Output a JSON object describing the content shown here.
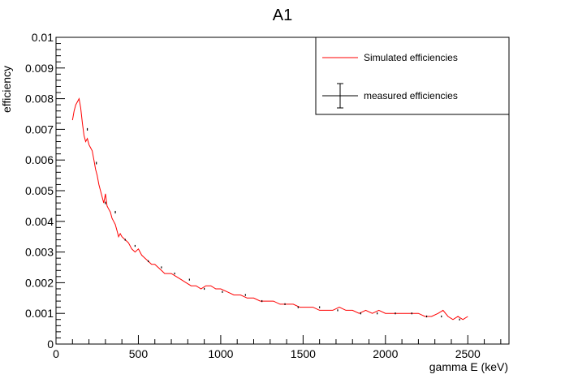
{
  "chart_data": {
    "type": "line",
    "title": "A1",
    "xlabel": "gamma E (keV)",
    "ylabel": "efficiency",
    "xlim": [
      0,
      2750
    ],
    "ylim": [
      0,
      0.01
    ],
    "x_ticks": [
      0,
      500,
      1000,
      1500,
      2000,
      2500
    ],
    "y_ticks": [
      0,
      0.001,
      0.002,
      0.003,
      0.004,
      0.005,
      0.006,
      0.007,
      0.008,
      0.009,
      0.01
    ],
    "x_tick_labels": [
      "0",
      "500",
      "1000",
      "1500",
      "2000",
      "2500"
    ],
    "y_tick_labels": [
      "0",
      "0.001",
      "0.002",
      "0.003",
      "0.004",
      "0.005",
      "0.006",
      "0.007",
      "0.008",
      "0.009",
      "0.01"
    ],
    "grid": false,
    "legend_position": "top-right",
    "colors": {
      "simulated": "#ff0000",
      "measured": "#000000"
    },
    "series": [
      {
        "name": "Simulated efficiencies",
        "style": "line",
        "x": [
          100,
          110,
          120,
          130,
          140,
          150,
          160,
          170,
          180,
          190,
          200,
          210,
          220,
          230,
          240,
          250,
          260,
          270,
          280,
          290,
          300,
          310,
          320,
          330,
          340,
          350,
          360,
          370,
          380,
          390,
          400,
          420,
          440,
          460,
          480,
          500,
          520,
          540,
          560,
          580,
          600,
          620,
          640,
          660,
          680,
          700,
          730,
          760,
          790,
          820,
          850,
          880,
          910,
          940,
          970,
          1000,
          1040,
          1080,
          1120,
          1160,
          1200,
          1240,
          1280,
          1320,
          1360,
          1400,
          1440,
          1480,
          1520,
          1560,
          1600,
          1640,
          1680,
          1720,
          1760,
          1800,
          1840,
          1880,
          1920,
          1960,
          2000,
          2040,
          2080,
          2120,
          2160,
          2200,
          2240,
          2280,
          2320,
          2350,
          2380,
          2410,
          2440,
          2470,
          2500
        ],
        "y": [
          0.0073,
          0.0076,
          0.0078,
          0.0079,
          0.008,
          0.0077,
          0.0072,
          0.0068,
          0.0066,
          0.0067,
          0.0065,
          0.0064,
          0.0063,
          0.006,
          0.0057,
          0.0055,
          0.0052,
          0.005,
          0.0048,
          0.0046,
          0.0049,
          0.0045,
          0.0044,
          0.0043,
          0.0041,
          0.004,
          0.0039,
          0.0037,
          0.0035,
          0.0036,
          0.0035,
          0.0034,
          0.0033,
          0.0031,
          0.003,
          0.0031,
          0.0029,
          0.0028,
          0.0027,
          0.0026,
          0.0026,
          0.0025,
          0.0024,
          0.0023,
          0.0023,
          0.0023,
          0.0022,
          0.0021,
          0.002,
          0.0019,
          0.0019,
          0.0018,
          0.0019,
          0.0019,
          0.0018,
          0.0018,
          0.0017,
          0.0016,
          0.0016,
          0.0015,
          0.0015,
          0.0014,
          0.0014,
          0.0014,
          0.0013,
          0.0013,
          0.0013,
          0.0012,
          0.0012,
          0.0012,
          0.0011,
          0.0011,
          0.0011,
          0.0012,
          0.0011,
          0.0011,
          0.001,
          0.0011,
          0.001,
          0.0011,
          0.001,
          0.001,
          0.001,
          0.001,
          0.001,
          0.001,
          0.0009,
          0.0009,
          0.001,
          0.0011,
          0.0009,
          0.0008,
          0.0009,
          0.0008,
          0.0009
        ]
      },
      {
        "name": "measured efficiencies",
        "style": "errorbar",
        "x": [
          190,
          245,
          300,
          360,
          420,
          480,
          560,
          640,
          720,
          810,
          900,
          1010,
          1150,
          1250,
          1390,
          1470,
          1600,
          1710,
          1850,
          1950,
          2060,
          2160,
          2250,
          2340,
          2450
        ],
        "y": [
          0.007,
          0.0059,
          0.0046,
          0.0043,
          0.0034,
          0.0032,
          0.0027,
          0.0025,
          0.0023,
          0.0021,
          0.0018,
          0.0017,
          0.0016,
          0.0014,
          0.0013,
          0.0012,
          0.0012,
          0.0011,
          0.001,
          0.001,
          0.001,
          0.001,
          0.0009,
          0.0009,
          0.0008
        ],
        "yerr": [
          4e-05,
          4e-05,
          4e-05,
          4e-05,
          3e-05,
          3e-05,
          3e-05,
          3e-05,
          3e-05,
          3e-05,
          3e-05,
          3e-05,
          3e-05,
          3e-05,
          3e-05,
          3e-05,
          3e-05,
          3e-05,
          3e-05,
          3e-05,
          3e-05,
          3e-05,
          3e-05,
          3e-05,
          3e-05
        ]
      }
    ]
  }
}
